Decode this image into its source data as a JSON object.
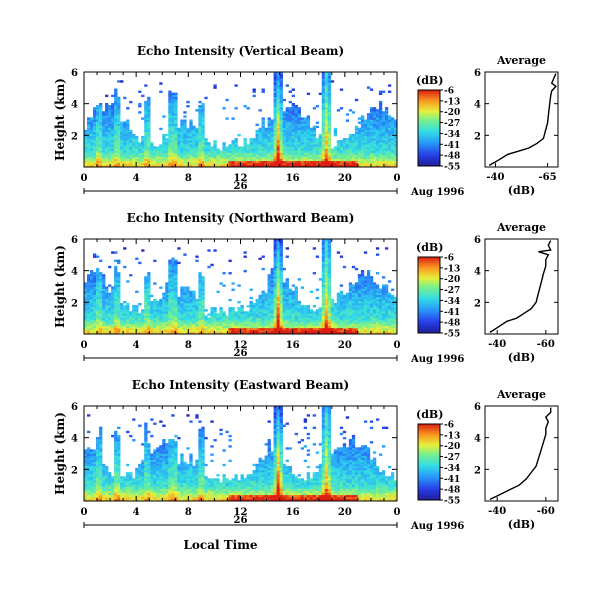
{
  "figure": {
    "date_label": "Aug 1996",
    "time_label": "Local Time",
    "colorbar_unit": "(dB)"
  },
  "chart_data": [
    {
      "type": "heatmap",
      "title": "Echo Intensity (Vertical Beam)",
      "ylabel": "Height (km)",
      "ylim": [
        0,
        6
      ],
      "y_ticks": [
        2,
        4,
        6
      ],
      "x_tick_labels": [
        "0",
        "4",
        "8",
        "12",
        "16",
        "20",
        "0"
      ],
      "x_ticks_hours": [
        0,
        4,
        8,
        12,
        16,
        20,
        24
      ],
      "day_label": "26",
      "colorbar": {
        "unit": "(dB)",
        "ticks": [
          -6,
          -13,
          -20,
          -27,
          -34,
          -41,
          -48,
          -55
        ],
        "range": [
          -55,
          -6
        ]
      },
      "average_profile": {
        "title": "Average",
        "xlabel": "(dB)",
        "x_tick_labels": [
          "-40",
          "-65"
        ],
        "ylim": [
          0,
          6
        ],
        "y_ticks": [
          2,
          4,
          6
        ],
        "xlim": [
          -35,
          -70
        ],
        "points": [
          [
            -37.0,
            0.1
          ],
          [
            -41.0,
            0.4
          ],
          [
            -46.0,
            0.8
          ],
          [
            -51.0,
            1.0
          ],
          [
            -56.0,
            1.2
          ],
          [
            -60.0,
            1.5
          ],
          [
            -63.0,
            1.8
          ],
          [
            -64.0,
            2.3
          ],
          [
            -65.0,
            2.8
          ],
          [
            -65.5,
            3.4
          ],
          [
            -66.0,
            4.0
          ],
          [
            -66.5,
            4.5
          ],
          [
            -67.0,
            4.8
          ],
          [
            -69.0,
            5.1
          ],
          [
            -67.0,
            5.3
          ],
          [
            -68.0,
            5.6
          ],
          [
            -69.0,
            5.9
          ]
        ]
      }
    },
    {
      "type": "heatmap",
      "title": "Echo Intensity (Northward Beam)",
      "ylabel": "Height (km)",
      "ylim": [
        0,
        6
      ],
      "y_ticks": [
        2,
        4,
        6
      ],
      "x_tick_labels": [
        "0",
        "4",
        "8",
        "12",
        "16",
        "20",
        "0"
      ],
      "x_ticks_hours": [
        0,
        4,
        8,
        12,
        16,
        20,
        24
      ],
      "day_label": "26",
      "colorbar": {
        "unit": "(dB)",
        "ticks": [
          -6,
          -13,
          -20,
          -27,
          -34,
          -41,
          -48,
          -55
        ],
        "range": [
          -55,
          -6
        ]
      },
      "average_profile": {
        "title": "Average",
        "xlabel": "(dB)",
        "x_tick_labels": [
          "-40",
          "-60"
        ],
        "ylim": [
          0,
          6
        ],
        "y_ticks": [
          2,
          4,
          6
        ],
        "xlim": [
          -35,
          -65
        ],
        "points": [
          [
            -37.0,
            0.1
          ],
          [
            -40.0,
            0.4
          ],
          [
            -44.0,
            0.8
          ],
          [
            -48.0,
            1.0
          ],
          [
            -51.0,
            1.3
          ],
          [
            -54.0,
            1.6
          ],
          [
            -56.0,
            2.0
          ],
          [
            -57.0,
            2.6
          ],
          [
            -58.0,
            3.2
          ],
          [
            -59.0,
            3.8
          ],
          [
            -60.0,
            4.3
          ],
          [
            -60.0,
            4.7
          ],
          [
            -61.0,
            5.0
          ],
          [
            -57.0,
            5.2
          ],
          [
            -62.0,
            5.3
          ],
          [
            -61.0,
            5.6
          ],
          [
            -62.0,
            5.9
          ]
        ]
      }
    },
    {
      "type": "heatmap",
      "title": "Echo Intensity (Eastward Beam)",
      "ylabel": "Height (km)",
      "ylim": [
        0,
        6
      ],
      "y_ticks": [
        2,
        4,
        6
      ],
      "x_tick_labels": [
        "0",
        "4",
        "8",
        "12",
        "16",
        "20",
        "0"
      ],
      "x_ticks_hours": [
        0,
        4,
        8,
        12,
        16,
        20,
        24
      ],
      "day_label": "26",
      "colorbar": {
        "unit": "(dB)",
        "ticks": [
          -6,
          -13,
          -20,
          -27,
          -34,
          -41,
          -48,
          -55
        ],
        "range": [
          -55,
          -6
        ]
      },
      "average_profile": {
        "title": "Average",
        "xlabel": "(dB)",
        "x_tick_labels": [
          "-40",
          "-60"
        ],
        "ylim": [
          0,
          6
        ],
        "y_ticks": [
          2,
          4,
          6
        ],
        "xlim": [
          -35,
          -65
        ],
        "points": [
          [
            -37.0,
            0.1
          ],
          [
            -41.0,
            0.4
          ],
          [
            -45.0,
            0.7
          ],
          [
            -49.0,
            1.0
          ],
          [
            -52.0,
            1.4
          ],
          [
            -54.0,
            1.8
          ],
          [
            -56.0,
            2.2
          ],
          [
            -57.0,
            2.7
          ],
          [
            -58.0,
            3.2
          ],
          [
            -59.0,
            3.7
          ],
          [
            -60.0,
            4.2
          ],
          [
            -60.0,
            4.6
          ],
          [
            -61.0,
            5.0
          ],
          [
            -60.0,
            5.3
          ],
          [
            -62.0,
            5.6
          ],
          [
            -62.0,
            5.9
          ]
        ]
      }
    }
  ]
}
